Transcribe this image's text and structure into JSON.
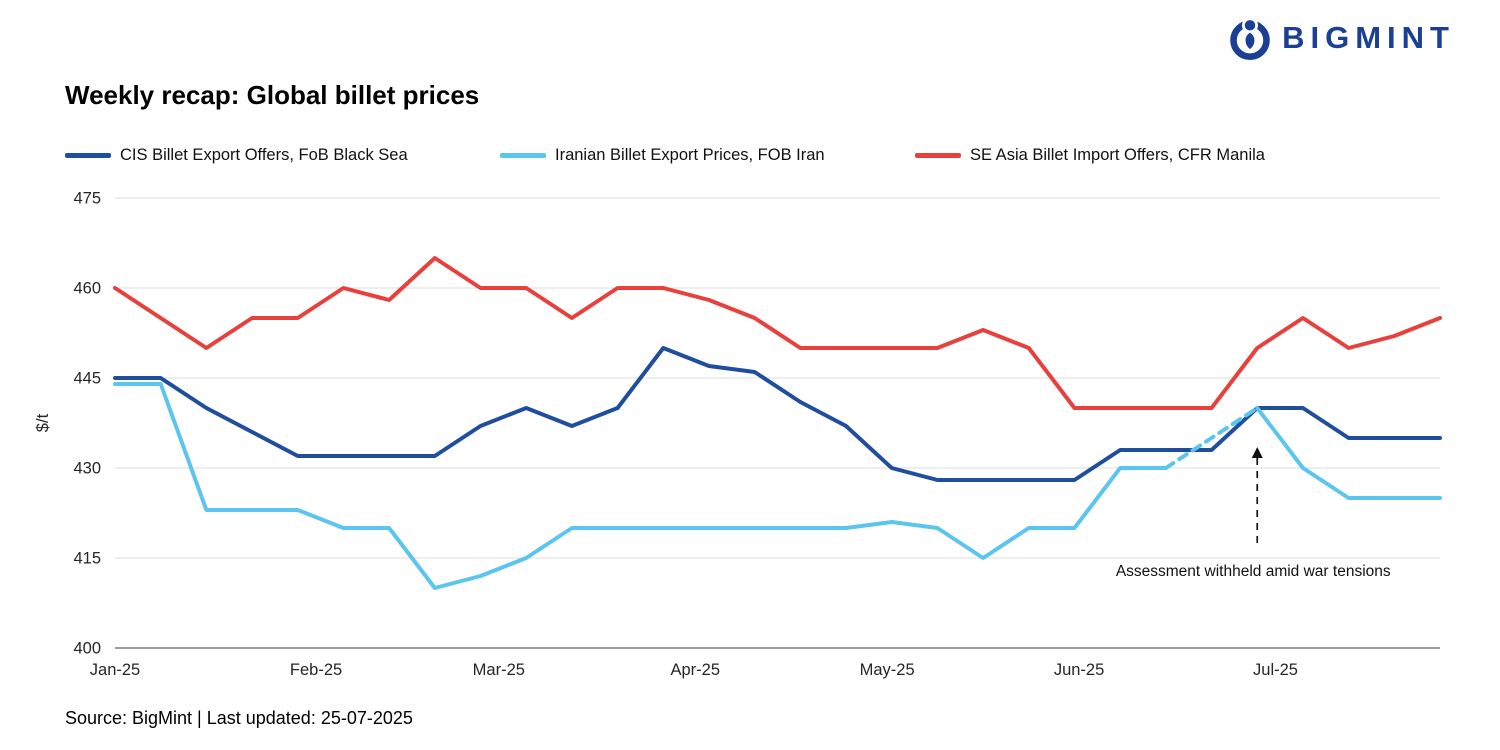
{
  "logo": {
    "text": "BIGMINT"
  },
  "title": "Weekly recap: Global billet prices",
  "source_line": "Source: BigMint | Last updated: 25-07-2025",
  "chart_data": {
    "type": "line",
    "title": "Weekly recap: Global billet prices",
    "xlabel": "",
    "ylabel": "$/t",
    "ylim": [
      400,
      475
    ],
    "yticks": [
      400,
      415,
      430,
      445,
      460,
      475
    ],
    "grid": "horizontal",
    "legend_position": "top",
    "x_unit": "week",
    "xticks": [
      {
        "label": "Jan-25",
        "week": 0
      },
      {
        "label": "Feb-25",
        "week": 4.4
      },
      {
        "label": "Mar-25",
        "week": 8.4
      },
      {
        "label": "Apr-25",
        "week": 12.7
      },
      {
        "label": "May-25",
        "week": 16.9
      },
      {
        "label": "Jun-25",
        "week": 21.1
      },
      {
        "label": "Jul-25",
        "week": 25.4
      }
    ],
    "series": [
      {
        "name": "CIS Billet Export Offers, FoB Black Sea",
        "color": "#1F4E9E",
        "values": [
          445,
          445,
          440,
          436,
          432,
          432,
          432,
          432,
          437,
          440,
          437,
          440,
          450,
          447,
          446,
          441,
          437,
          430,
          428,
          428,
          428,
          428,
          433,
          433,
          433,
          440,
          440,
          435,
          435,
          435
        ]
      },
      {
        "name": "Iranian Billet Export Prices, FOB Iran",
        "color": "#5CC5EF",
        "values": [
          444,
          444,
          423,
          423,
          423,
          420,
          420,
          410,
          412,
          415,
          420,
          420,
          420,
          420,
          420,
          420,
          420,
          421,
          420,
          415,
          420,
          420,
          430,
          430,
          435,
          440,
          430,
          425,
          425,
          425
        ],
        "dashed_segment": [
          23,
          25
        ],
        "dashed_note": "dashed section = assessment withheld"
      },
      {
        "name": "SE Asia Billet Import Offers, CFR Manila",
        "color": "#E8403C",
        "values": [
          460,
          455,
          450,
          455,
          455,
          460,
          458,
          465,
          460,
          460,
          455,
          460,
          460,
          458,
          455,
          450,
          450,
          450,
          450,
          453,
          450,
          440,
          440,
          440,
          440,
          450,
          455,
          450,
          452,
          455
        ]
      }
    ],
    "annotation": {
      "text": "Assessment withheld amid war tensions",
      "arrow_week": 25,
      "arrow_from_value": 417.5,
      "arrow_to_value": 433.5
    }
  }
}
